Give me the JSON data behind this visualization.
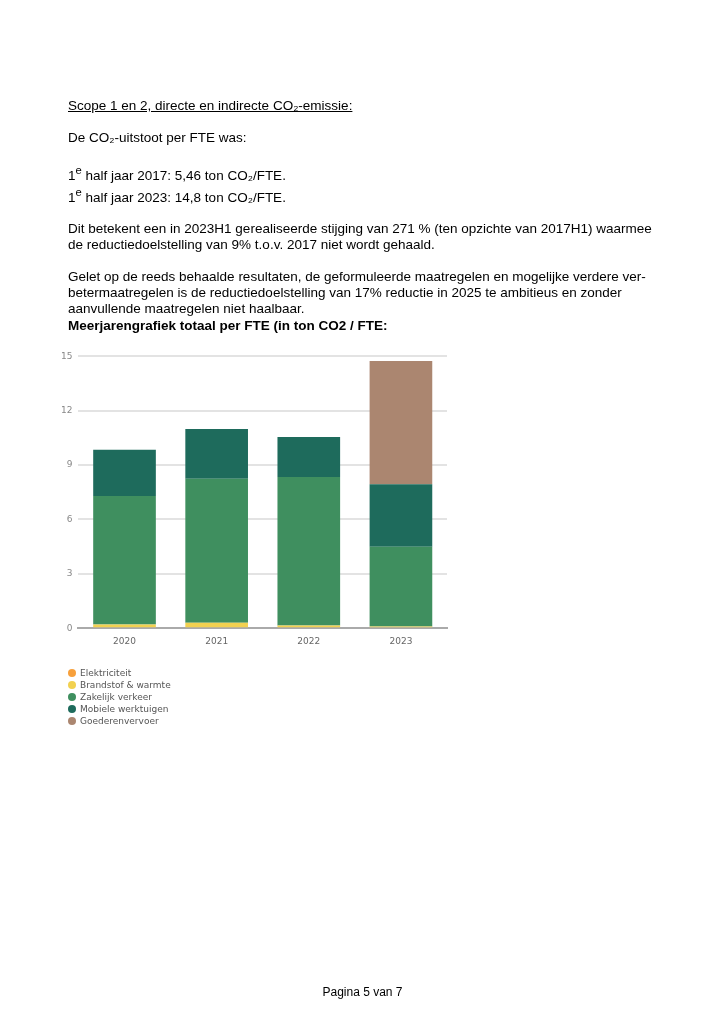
{
  "chart_data": {
    "type": "bar",
    "stacked": true,
    "title": "Meerjarengrafiek totaal per FTE (in ton CO2 / FTE:",
    "categories": [
      "2020",
      "2021",
      "2022",
      "2023"
    ],
    "series": [
      {
        "name": "Elektriciteit",
        "color": "#f7a03c",
        "values": [
          0,
          0,
          0,
          0
        ]
      },
      {
        "name": "Brandstof & warmte",
        "color": "#f2d150",
        "values": [
          0.2,
          0.3,
          0.15,
          0.1
        ]
      },
      {
        "name": "Zakelijk verkeer",
        "color": "#3f8f5f",
        "values": [
          7.1,
          7.95,
          8.2,
          4.4
        ]
      },
      {
        "name": "Mobiele werktuigen",
        "color": "#1e6b5c",
        "values": [
          2.55,
          2.75,
          2.2,
          3.45
        ]
      },
      {
        "name": "Goederenvervoer",
        "color": "#ab8670",
        "values": [
          null,
          null,
          null,
          6.8
        ]
      }
    ],
    "ylim": [
      0,
      15
    ],
    "yticks": [
      0,
      3,
      6,
      9,
      12,
      15
    ],
    "grid": "y",
    "legend": "bottom",
    "annotations": [
      "Scope 1 en 2, directe en indirecte CO₂-emissie:",
      "De CO₂-uitstoot per FTE was:",
      "1$^{e}$ half jaar 2017: 5,46 ton CO₂/FTE.",
      "1$^{e}$ half jaar 2023: 14,8 ton CO₂/FTE.",
      "Dit betekent een in 2023H1 gerealiseerde stijging van 271 % (ten opzichte van 2017H1) waarmee de reductiedoelstelling van 9% t.o.v. 2017 niet wordt gehaald.",
      "Gelet op de reeds behaalde resultaten, de geformuleerde maatregelen en mogelijke verdere ver-betermaatregelen is de reductiedoelstelling van 17% reductie in 2025 te ambitieus en zonder aanvullende maatregelen niet haalbaar.",
      "Pagina 5 van 7"
    ]
  }
}
